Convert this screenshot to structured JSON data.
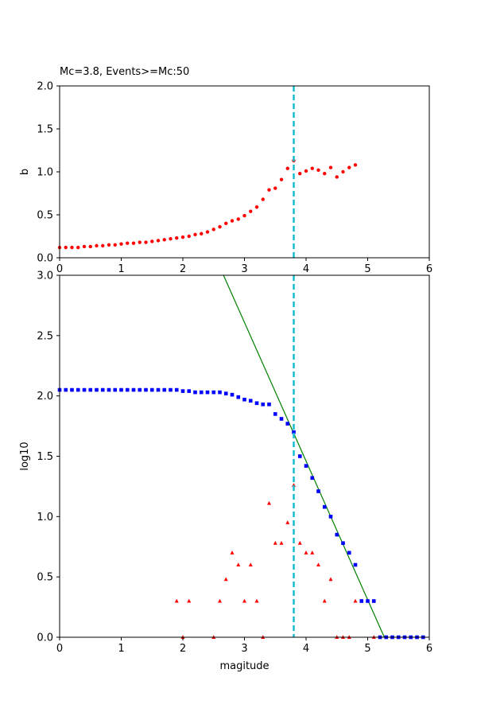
{
  "chart_data": [
    {
      "type": "scatter",
      "title": "Mc=3.8, Events>=Mc:50",
      "xlabel": "",
      "ylabel": "b",
      "xlim": [
        0,
        6
      ],
      "ylim": [
        0,
        2
      ],
      "xticks": [
        "0",
        "1",
        "2",
        "3",
        "4",
        "5",
        "6"
      ],
      "yticks": [
        "0.0",
        "0.5",
        "1.0",
        "1.5",
        "2.0"
      ],
      "grid": false,
      "mc_line": {
        "x": 3.8,
        "color": "#17becf"
      },
      "series": [
        {
          "color": "#ff0000",
          "marker": "circle",
          "x": [
            0.0,
            0.1,
            0.2,
            0.3,
            0.4,
            0.5,
            0.6,
            0.7,
            0.8,
            0.9,
            1.0,
            1.1,
            1.2,
            1.3,
            1.4,
            1.5,
            1.6,
            1.7,
            1.8,
            1.9,
            2.0,
            2.1,
            2.2,
            2.3,
            2.4,
            2.5,
            2.6,
            2.7,
            2.8,
            2.9,
            3.0,
            3.1,
            3.2,
            3.3,
            3.4,
            3.5,
            3.6,
            3.7,
            3.8,
            3.9,
            4.0,
            4.1,
            4.2,
            4.3,
            4.4,
            4.5,
            4.6,
            4.7,
            4.8
          ],
          "y": [
            0.12,
            0.12,
            0.12,
            0.12,
            0.13,
            0.13,
            0.14,
            0.14,
            0.15,
            0.15,
            0.16,
            0.17,
            0.17,
            0.18,
            0.18,
            0.19,
            0.2,
            0.21,
            0.22,
            0.23,
            0.24,
            0.25,
            0.27,
            0.28,
            0.3,
            0.33,
            0.36,
            0.4,
            0.43,
            0.45,
            0.49,
            0.54,
            0.59,
            0.68,
            0.79,
            0.81,
            0.91,
            1.04,
            1.13,
            0.98,
            1.01,
            1.04,
            1.02,
            0.98,
            1.05,
            0.94,
            1.0,
            1.05,
            1.08
          ]
        }
      ]
    },
    {
      "type": "scatter",
      "title": "",
      "xlabel": "magitude",
      "ylabel": "log10",
      "xlim": [
        0,
        6
      ],
      "ylim": [
        0,
        3
      ],
      "xticks": [
        "0",
        "1",
        "2",
        "3",
        "4",
        "5",
        "6"
      ],
      "yticks": [
        "0.0",
        "0.5",
        "1.0",
        "1.5",
        "2.0",
        "2.5",
        "3.0"
      ],
      "grid": false,
      "mc_line": {
        "x": 3.8,
        "color": "#17becf"
      },
      "fit_line": {
        "color": "#008000",
        "points": [
          [
            2.66,
            3.0
          ],
          [
            5.27,
            0.0
          ]
        ]
      },
      "series": [
        {
          "color": "#0000ff",
          "marker": "square",
          "x": [
            0.0,
            0.1,
            0.2,
            0.3,
            0.4,
            0.5,
            0.6,
            0.7,
            0.8,
            0.9,
            1.0,
            1.1,
            1.2,
            1.3,
            1.4,
            1.5,
            1.6,
            1.7,
            1.8,
            1.9,
            2.0,
            2.1,
            2.2,
            2.3,
            2.4,
            2.5,
            2.6,
            2.7,
            2.8,
            2.9,
            3.0,
            3.1,
            3.2,
            3.3,
            3.4,
            3.5,
            3.6,
            3.7,
            3.8,
            3.9,
            4.0,
            4.1,
            4.2,
            4.3,
            4.4,
            4.5,
            4.6,
            4.7,
            4.8,
            4.9,
            5.0,
            5.1,
            5.2,
            5.3,
            5.4,
            5.5,
            5.6,
            5.7,
            5.8,
            5.9
          ],
          "y": [
            2.05,
            2.05,
            2.05,
            2.05,
            2.05,
            2.05,
            2.05,
            2.05,
            2.05,
            2.05,
            2.05,
            2.05,
            2.05,
            2.05,
            2.05,
            2.05,
            2.05,
            2.05,
            2.05,
            2.05,
            2.04,
            2.04,
            2.03,
            2.03,
            2.03,
            2.03,
            2.03,
            2.02,
            2.01,
            1.99,
            1.97,
            1.96,
            1.94,
            1.93,
            1.93,
            1.85,
            1.81,
            1.77,
            1.7,
            1.5,
            1.42,
            1.32,
            1.21,
            1.08,
            1.0,
            0.85,
            0.78,
            0.7,
            0.6,
            0.3,
            0.3,
            0.3,
            0.0,
            0.0,
            0.0,
            0.0,
            0.0,
            0.0,
            0.0,
            0.0
          ]
        },
        {
          "color": "#ff0000",
          "marker": "triangle",
          "x": [
            1.9,
            2.0,
            2.1,
            2.5,
            2.6,
            2.7,
            2.8,
            2.9,
            3.0,
            3.1,
            3.2,
            3.3,
            3.4,
            3.5,
            3.6,
            3.7,
            3.8,
            3.9,
            4.0,
            4.1,
            4.2,
            4.3,
            4.4,
            4.5,
            4.6,
            4.7,
            4.8,
            5.1
          ],
          "y": [
            0.3,
            0.0,
            0.3,
            0.0,
            0.3,
            0.48,
            0.7,
            0.6,
            0.3,
            0.6,
            0.3,
            0.0,
            1.11,
            0.78,
            0.78,
            0.95,
            1.26,
            0.78,
            0.7,
            0.7,
            0.6,
            0.3,
            0.48,
            0.0,
            0.0,
            0.0,
            0.3,
            0.0
          ]
        }
      ]
    }
  ]
}
